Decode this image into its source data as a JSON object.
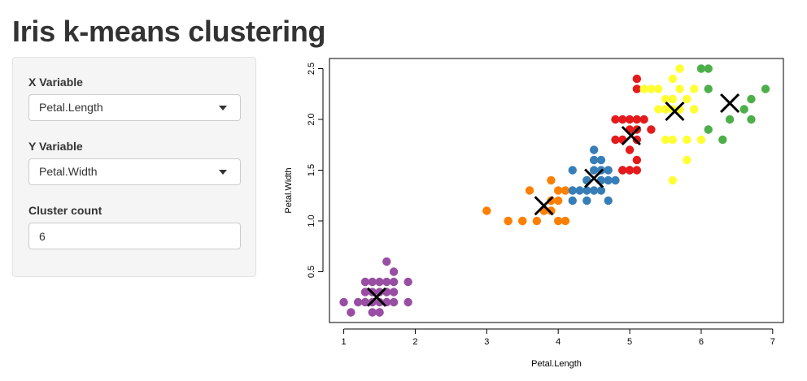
{
  "page": {
    "title": "Iris k-means clustering"
  },
  "sidebar": {
    "x_variable": {
      "label": "X Variable",
      "value": "Petal.Length"
    },
    "y_variable": {
      "label": "Y Variable",
      "value": "Petal.Width"
    },
    "cluster_count": {
      "label": "Cluster count",
      "value": "6"
    }
  },
  "chart_data": {
    "type": "scatter",
    "xlabel": "Petal.Length",
    "ylabel": "Petal.Width",
    "xlim": [
      0.8,
      7.15
    ],
    "ylim": [
      0.0,
      2.6
    ],
    "xticks": [
      1,
      2,
      3,
      4,
      5,
      6,
      7
    ],
    "yticks": [
      0.5,
      1.0,
      1.5,
      2.0,
      2.5
    ],
    "xtick_labels": [
      "1",
      "2",
      "3",
      "4",
      "5",
      "6",
      "7"
    ],
    "ytick_labels": [
      "0.5",
      "1.0",
      "1.5",
      "2.0",
      "2.5"
    ],
    "grid": false,
    "clusters": [
      {
        "color": "#984ea3",
        "points": [
          [
            1.0,
            0.2
          ],
          [
            1.1,
            0.1
          ],
          [
            1.2,
            0.2
          ],
          [
            1.3,
            0.2
          ],
          [
            1.3,
            0.3
          ],
          [
            1.4,
            0.2
          ],
          [
            1.4,
            0.1
          ],
          [
            1.4,
            0.3
          ],
          [
            1.5,
            0.2
          ],
          [
            1.5,
            0.1
          ],
          [
            1.5,
            0.4
          ],
          [
            1.5,
            0.3
          ],
          [
            1.6,
            0.2
          ],
          [
            1.6,
            0.4
          ],
          [
            1.6,
            0.6
          ],
          [
            1.7,
            0.2
          ],
          [
            1.7,
            0.3
          ],
          [
            1.7,
            0.4
          ],
          [
            1.7,
            0.5
          ],
          [
            1.9,
            0.2
          ],
          [
            1.9,
            0.4
          ],
          [
            1.3,
            0.4
          ],
          [
            1.4,
            0.4
          ],
          [
            1.6,
            0.3
          ],
          [
            1.5,
            0.1
          ]
        ],
        "center": [
          1.46,
          0.25
        ]
      },
      {
        "color": "#ff7f00",
        "points": [
          [
            3.0,
            1.1
          ],
          [
            3.3,
            1.0
          ],
          [
            3.5,
            1.0
          ],
          [
            3.6,
            1.3
          ],
          [
            3.7,
            1.0
          ],
          [
            3.8,
            1.1
          ],
          [
            3.9,
            1.1
          ],
          [
            3.9,
            1.2
          ],
          [
            3.9,
            1.4
          ],
          [
            4.0,
            1.0
          ],
          [
            4.0,
            1.3
          ],
          [
            4.0,
            1.2
          ],
          [
            4.1,
            1.0
          ],
          [
            4.1,
            1.3
          ],
          [
            3.5,
            1.0
          ],
          [
            3.3,
            1.0
          ]
        ],
        "center": [
          3.8,
          1.15
        ]
      },
      {
        "color": "#377eb8",
        "points": [
          [
            4.2,
            1.2
          ],
          [
            4.2,
            1.3
          ],
          [
            4.2,
            1.5
          ],
          [
            4.3,
            1.3
          ],
          [
            4.4,
            1.2
          ],
          [
            4.4,
            1.3
          ],
          [
            4.4,
            1.4
          ],
          [
            4.5,
            1.3
          ],
          [
            4.5,
            1.5
          ],
          [
            4.5,
            1.6
          ],
          [
            4.5,
            1.7
          ],
          [
            4.6,
            1.3
          ],
          [
            4.6,
            1.4
          ],
          [
            4.6,
            1.5
          ],
          [
            4.7,
            1.2
          ],
          [
            4.7,
            1.4
          ],
          [
            4.7,
            1.5
          ],
          [
            4.8,
            1.4
          ],
          [
            4.9,
            1.5
          ],
          [
            4.4,
            1.4
          ],
          [
            4.6,
            1.6
          ]
        ],
        "center": [
          4.5,
          1.42
        ]
      },
      {
        "color": "#e41a1c",
        "points": [
          [
            4.8,
            1.8
          ],
          [
            4.8,
            2.0
          ],
          [
            4.9,
            1.8
          ],
          [
            4.9,
            2.0
          ],
          [
            5.0,
            1.5
          ],
          [
            5.0,
            1.7
          ],
          [
            5.0,
            1.9
          ],
          [
            5.0,
            2.0
          ],
          [
            5.1,
            1.5
          ],
          [
            5.1,
            1.6
          ],
          [
            5.1,
            1.8
          ],
          [
            5.1,
            1.9
          ],
          [
            5.1,
            2.0
          ],
          [
            5.1,
            2.3
          ],
          [
            5.1,
            2.4
          ],
          [
            5.2,
            2.0
          ],
          [
            5.3,
            1.9
          ],
          [
            4.9,
            1.5
          ],
          [
            5.0,
            1.5
          ]
        ],
        "center": [
          5.02,
          1.84
        ]
      },
      {
        "color": "#ffff33",
        "points": [
          [
            5.2,
            2.3
          ],
          [
            5.3,
            2.3
          ],
          [
            5.4,
            2.1
          ],
          [
            5.4,
            2.3
          ],
          [
            5.5,
            1.8
          ],
          [
            5.5,
            2.1
          ],
          [
            5.5,
            2.2
          ],
          [
            5.6,
            1.4
          ],
          [
            5.6,
            1.8
          ],
          [
            5.6,
            2.1
          ],
          [
            5.6,
            2.2
          ],
          [
            5.6,
            2.4
          ],
          [
            5.7,
            2.1
          ],
          [
            5.7,
            2.3
          ],
          [
            5.7,
            2.5
          ],
          [
            5.8,
            1.6
          ],
          [
            5.8,
            1.8
          ],
          [
            5.8,
            2.2
          ],
          [
            5.9,
            2.3
          ],
          [
            5.9,
            2.1
          ],
          [
            6.0,
            1.8
          ],
          [
            5.7,
            2.5
          ]
        ],
        "center": [
          5.63,
          2.08
        ]
      },
      {
        "color": "#4daf4a",
        "points": [
          [
            6.0,
            2.5
          ],
          [
            6.1,
            2.5
          ],
          [
            6.1,
            2.3
          ],
          [
            6.1,
            1.9
          ],
          [
            6.3,
            1.8
          ],
          [
            6.4,
            2.0
          ],
          [
            6.6,
            2.1
          ],
          [
            6.7,
            2.0
          ],
          [
            6.7,
            2.2
          ],
          [
            6.9,
            2.3
          ]
        ],
        "center": [
          6.4,
          2.16
        ]
      }
    ]
  }
}
